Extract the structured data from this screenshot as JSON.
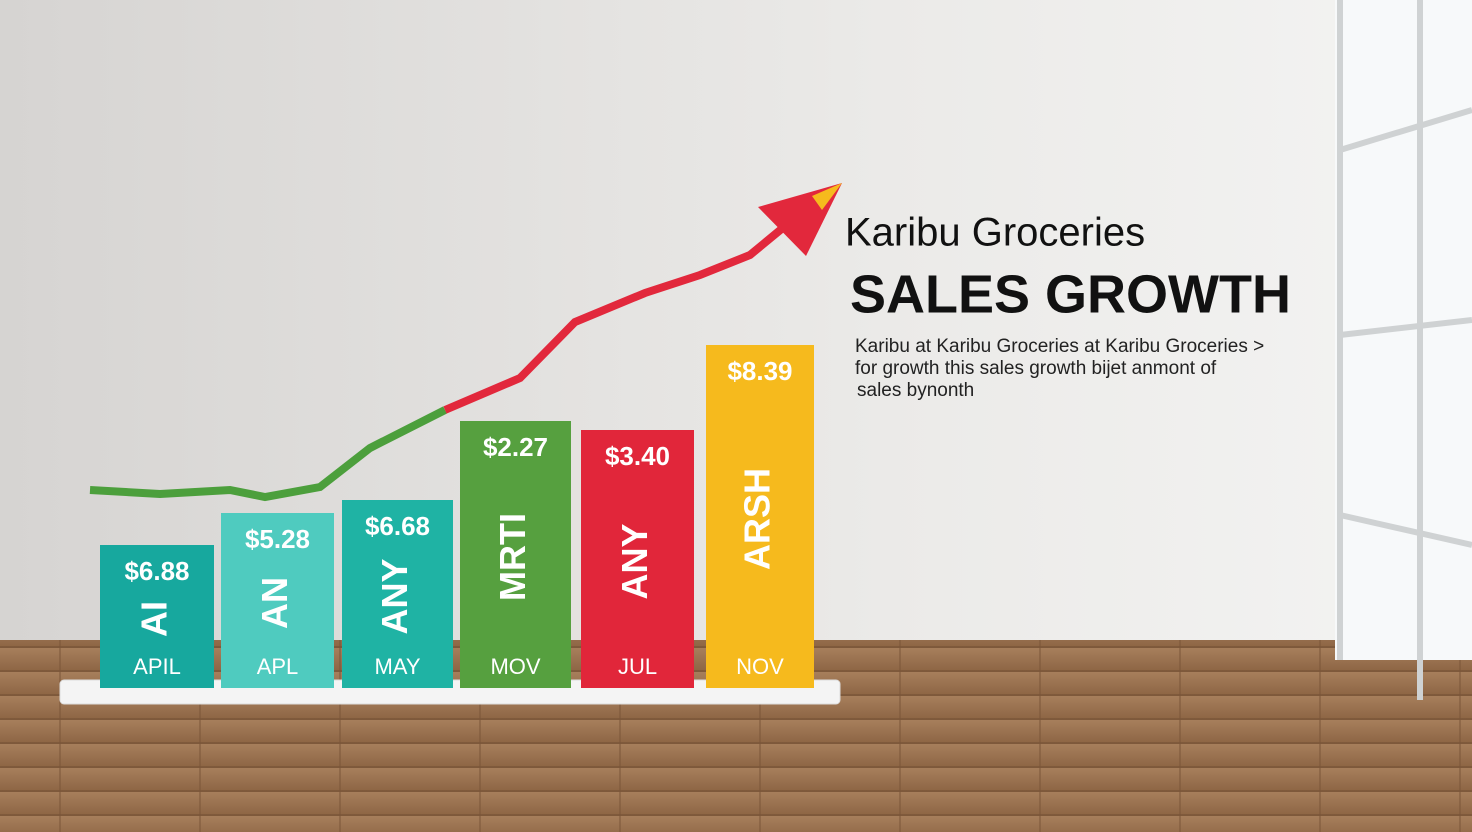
{
  "title": {
    "brand": "Karibu Groceries",
    "headline": "SALES GROWTH"
  },
  "description": [
    "Karibu at Karibu Groceries at Karibu Groceries >",
    "for growth this sales growth bijet anmont of",
    "sales bynonth"
  ],
  "bars": [
    {
      "amount": "$6.88",
      "word": "AI",
      "month": "APIL",
      "color": "#17a89e"
    },
    {
      "amount": "$5.28",
      "word": "AN",
      "month": "APL",
      "color": "#4fcbbf"
    },
    {
      "amount": "$6.68",
      "word": "ANY",
      "month": "MAY",
      "color": "#1fb3a4"
    },
    {
      "amount": "$2.27",
      "word": "MRTI",
      "month": "MOV",
      "color": "#56a03f"
    },
    {
      "amount": "$3.40",
      "word": "ANY",
      "month": "JUL",
      "color": "#e1263a"
    },
    {
      "amount": "$8.39",
      "word": "ARSH",
      "month": "NOV",
      "color": "#f6ba1d"
    }
  ]
}
